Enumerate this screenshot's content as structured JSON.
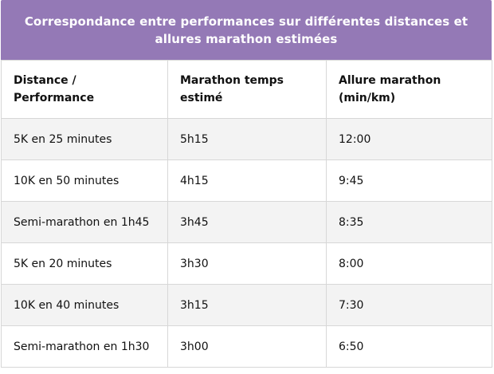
{
  "title": "Correspondance entre performances sur différentes distances et allures marathon estimées",
  "columns": [
    "Distance / Performance",
    "Marathon temps estimé",
    "Allure marathon (min/km)"
  ],
  "rows": [
    [
      "5K en 25 minutes",
      "5h15",
      "12:00"
    ],
    [
      "10K en 50 minutes",
      "4h15",
      "9:45"
    ],
    [
      "Semi-marathon en 1h45",
      "3h45",
      "8:35"
    ],
    [
      "5K en 20 minutes",
      "3h30",
      "8:00"
    ],
    [
      "10K en 40 minutes",
      "3h15",
      "7:30"
    ],
    [
      "Semi-marathon en 1h30",
      "3h00",
      "6:50"
    ]
  ],
  "colors": {
    "header_bg": "#9479b6",
    "header_text": "#ffffff",
    "row_alt_bg": "#f3f3f3",
    "border": "#d7d7d7"
  }
}
